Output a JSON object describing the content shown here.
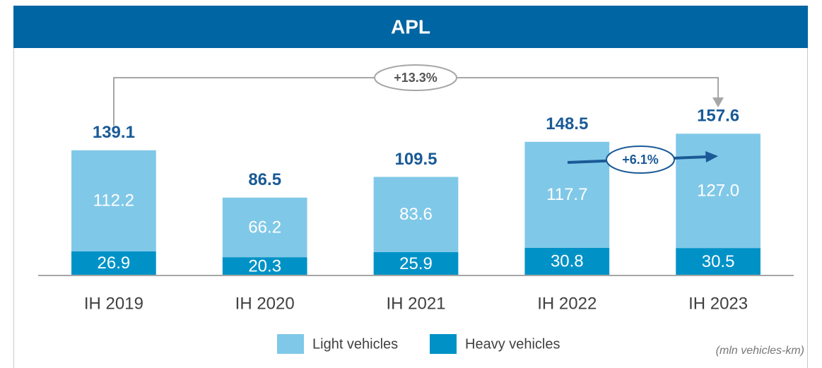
{
  "chart_data": {
    "type": "stacked_bar",
    "title": "APL",
    "categories": [
      "IH 2019",
      "IH 2020",
      "IH 2021",
      "IH 2022",
      "IH 2023"
    ],
    "series": [
      {
        "name": "Heavy vehicles",
        "color": "#0092c7",
        "values": [
          26.9,
          20.3,
          25.9,
          30.8,
          30.5
        ]
      },
      {
        "name": "Light vehicles",
        "color": "#80c8e8",
        "values": [
          112.2,
          66.2,
          83.6,
          117.7,
          127.0
        ],
        "value_labels": [
          "112.2",
          "66.2",
          "83.6",
          "117.7",
          "127.0"
        ]
      }
    ],
    "totals": [
      139.1,
      86.5,
      109.5,
      148.5,
      157.6
    ],
    "ylim": [
      0,
      175
    ],
    "annotations": [
      "+13.3%",
      "+6.1%"
    ],
    "unit_note": "(mln vehicles-km)"
  }
}
